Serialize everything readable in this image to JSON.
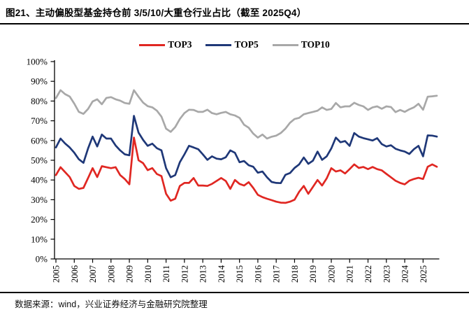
{
  "header": {
    "title": "图21、主动偏股型基金持仓前 3/5/10/大重仓行业占比（截至 2025Q4）"
  },
  "footer": {
    "source": "数据来源：wind，兴业证券经济与金融研究院整理"
  },
  "legend": [
    {
      "label": "TOP3",
      "color": "#e02722"
    },
    {
      "label": "TOP5",
      "color": "#1f3878"
    },
    {
      "label": "TOP10",
      "color": "#a8a8a8"
    }
  ],
  "chart_data": {
    "type": "line",
    "title": "图21、主动偏股型基金持仓前 3/5/10/大重仓行业占比（截至 2025Q4）",
    "x_unit": "quarter",
    "x_start": "2005Q1",
    "x_end": "2025Q4",
    "x_tick_labels": [
      "2005",
      "2006",
      "2007",
      "2008",
      "2009",
      "2010",
      "2011",
      "2012",
      "2013",
      "2014",
      "2015",
      "2016",
      "2017",
      "2018",
      "2019",
      "2020",
      "2021",
      "2022",
      "2023",
      "2024",
      "2025"
    ],
    "ylim": [
      0,
      100
    ],
    "y_tick_labels": [
      "0%",
      "10%",
      "20%",
      "30%",
      "40%",
      "50%",
      "60%",
      "70%",
      "80%",
      "90%",
      "100%"
    ],
    "grid": false,
    "legend_position": "top-center",
    "series": [
      {
        "name": "TOP3",
        "color": "#e02722",
        "values": [
          42.5,
          46.5,
          44,
          41.5,
          37,
          35.5,
          36,
          41,
          46,
          41.5,
          47,
          46.5,
          46,
          46.5,
          42.5,
          40.5,
          37.8,
          61.5,
          50,
          48.5,
          45,
          46,
          43,
          42,
          33,
          29.5,
          30.5,
          37,
          38.5,
          38.5,
          41,
          37.2,
          37.2,
          37,
          38,
          39.5,
          41,
          39.5,
          35.5,
          40,
          38,
          37.2,
          38.9,
          36,
          32.5,
          31.3,
          30.5,
          29.8,
          29,
          28.5,
          28.4,
          29,
          30,
          34,
          37,
          33,
          36.5,
          40,
          37.2,
          40.8,
          46,
          44.3,
          44.9,
          43.3,
          45.5,
          47.9,
          46.1,
          46.6,
          45.5,
          46.6,
          45.5,
          44.9,
          43.1,
          41.4,
          39.6,
          38.5,
          37.8,
          39.6,
          40.5,
          41.1,
          40.5,
          46.7,
          47.9,
          46.7
        ]
      },
      {
        "name": "TOP5",
        "color": "#1f3878",
        "values": [
          56.5,
          61,
          58.5,
          56.5,
          53.8,
          50.5,
          48.7,
          56,
          62,
          57,
          63,
          61,
          61,
          57.5,
          55,
          53,
          52.5,
          72.5,
          64,
          60.3,
          57.3,
          58.4,
          56.1,
          55,
          46,
          41.4,
          42.5,
          49,
          53,
          57.3,
          56.5,
          55.6,
          53,
          50.2,
          52,
          50.8,
          50.5,
          51.5,
          55,
          53.8,
          49,
          49.6,
          47.5,
          46.7,
          43.7,
          44.3,
          41.4,
          39,
          38.5,
          38.4,
          42.6,
          43.5,
          46.1,
          47.9,
          51.4,
          48.2,
          49.8,
          54.4,
          50.2,
          52,
          56,
          61.5,
          59.1,
          59.7,
          57.3,
          63.8,
          62,
          61.2,
          60.6,
          60,
          61.2,
          58.2,
          57,
          57.6,
          55.8,
          55,
          54.4,
          53.2,
          55.6,
          57.3,
          52,
          62.6,
          62.5,
          62
        ]
      },
      {
        "name": "TOP10",
        "color": "#a8a8a8",
        "values": [
          81.5,
          85.5,
          83.5,
          82.3,
          78.7,
          74.5,
          73.5,
          76,
          79.8,
          80.9,
          78.4,
          81.6,
          82,
          80.9,
          80.2,
          79,
          78.6,
          85.5,
          82.2,
          79.2,
          77.4,
          76.8,
          75.1,
          72.1,
          66,
          64.4,
          66.8,
          70.9,
          73.9,
          75.6,
          75.5,
          74.5,
          74.5,
          75.6,
          73.9,
          73.3,
          74,
          74.5,
          73.3,
          72.7,
          71.5,
          68,
          66.5,
          63.5,
          61.5,
          63,
          61,
          61.9,
          62.5,
          63.8,
          66,
          69,
          70.9,
          71.5,
          73.3,
          73.9,
          74.5,
          75.1,
          76.8,
          75.5,
          76,
          79,
          76.8,
          77.3,
          77.3,
          79.1,
          78,
          77.3,
          75.5,
          76.8,
          77.3,
          76.1,
          77.3,
          77,
          74.4,
          75.5,
          74.5,
          75.8,
          76.8,
          78.6,
          75.6,
          82.2,
          82.4,
          82.7
        ]
      }
    ]
  }
}
